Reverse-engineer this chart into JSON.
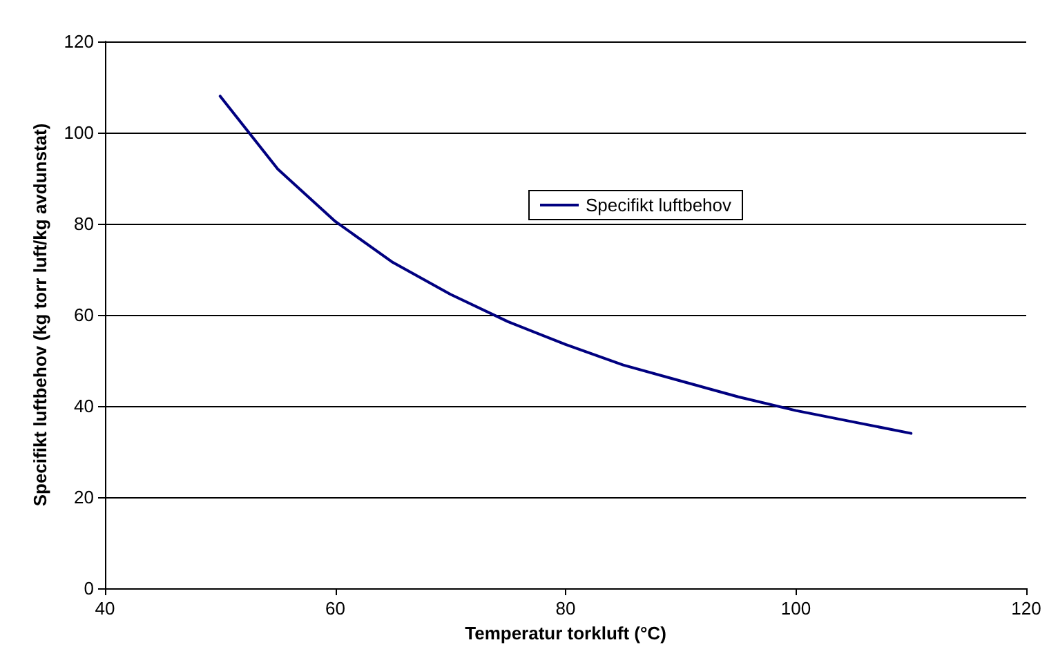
{
  "chart_data": {
    "type": "line",
    "xlabel": "Temperatur torkluft (°C)",
    "ylabel": "Specifikt luftbehov (kg torr luft/kg avdunstat)",
    "x": [
      50,
      55,
      60,
      65,
      70,
      75,
      80,
      85,
      90,
      95,
      100,
      105,
      110
    ],
    "series": [
      {
        "name": "Specifikt luftbehov",
        "color": "#000080",
        "values": [
          108,
          92,
          80.5,
          71.5,
          64.5,
          58.5,
          53.5,
          49,
          45.5,
          42,
          39,
          36.5,
          34
        ]
      }
    ],
    "xlim": [
      40,
      120
    ],
    "xticks": [
      40,
      60,
      80,
      100,
      120
    ],
    "ylim": [
      0,
      120
    ],
    "yticks": [
      0,
      20,
      40,
      60,
      80,
      100,
      120
    ],
    "grid": "y",
    "legend": "top right",
    "marker": "none",
    "line_style": "solid"
  }
}
